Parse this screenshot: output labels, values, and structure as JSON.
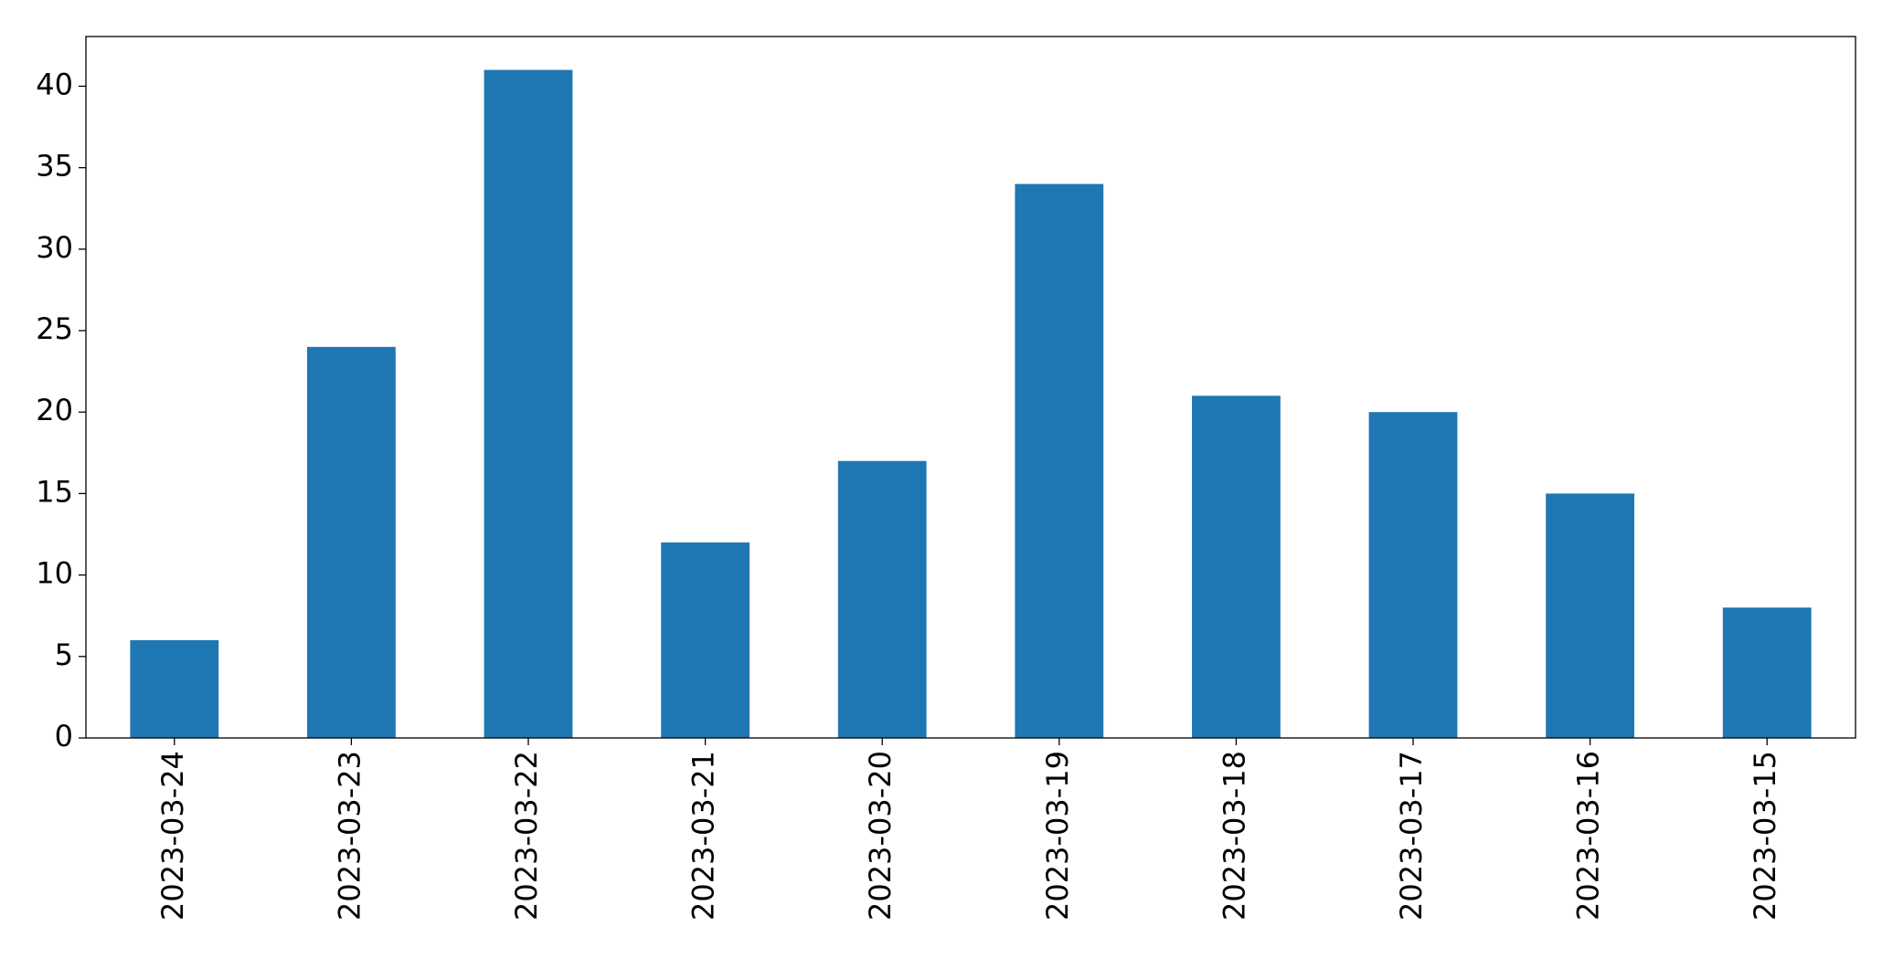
{
  "chart_data": {
    "type": "bar",
    "categories": [
      "2023-03-24",
      "2023-03-23",
      "2023-03-22",
      "2023-03-21",
      "2023-03-20",
      "2023-03-19",
      "2023-03-18",
      "2023-03-17",
      "2023-03-16",
      "2023-03-15"
    ],
    "values": [
      6,
      24,
      41,
      12,
      17,
      34,
      21,
      20,
      15,
      8
    ],
    "color": "#1f77b4",
    "ylim": [
      0,
      43.05
    ],
    "yticks": [
      0,
      5,
      10,
      15,
      20,
      25,
      30,
      35,
      40
    ],
    "grid": false
  }
}
